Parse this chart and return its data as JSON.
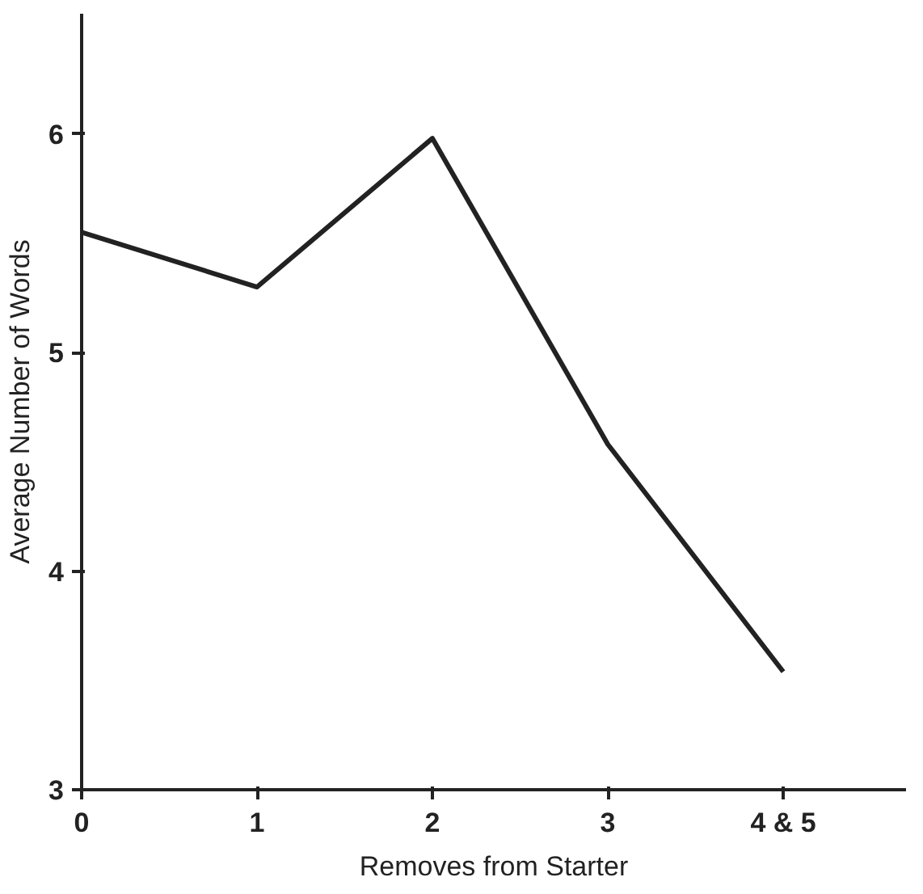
{
  "chart_data": {
    "type": "line",
    "xlabel": "Removes from Starter",
    "ylabel": "Average Number of Words",
    "categories": [
      "0",
      "1",
      "2",
      "3",
      "4 & 5"
    ],
    "series": [
      {
        "color": "#222222",
        "values": [
          5.55,
          5.3,
          5.98,
          4.58,
          3.54
        ]
      }
    ],
    "ylim": [
      3,
      6.55
    ],
    "yticks": [
      3,
      4,
      5,
      6
    ],
    "line_style": "solid"
  }
}
